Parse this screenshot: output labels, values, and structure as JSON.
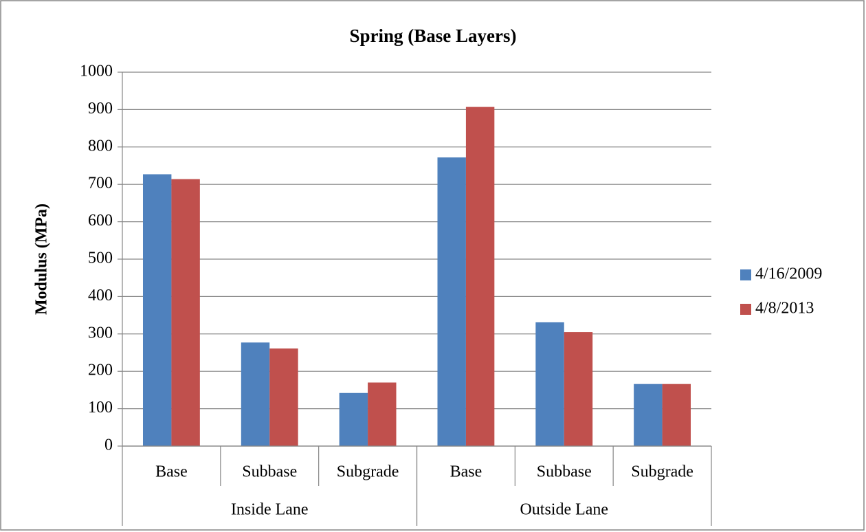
{
  "chart_data": {
    "type": "bar",
    "title": "Spring (Base Layers)",
    "y_label": "Modulus (MPa)",
    "category_groups": [
      {
        "name": "Inside Lane",
        "categories": [
          "Base",
          "Subbase",
          "Subgrade"
        ]
      },
      {
        "name": "Outside Lane",
        "categories": [
          "Base",
          "Subbase",
          "Subgrade"
        ]
      }
    ],
    "series": [
      {
        "name": "4/16/2009",
        "color": "#4f81bd",
        "values": [
          727,
          277,
          142,
          772,
          331,
          166
        ]
      },
      {
        "name": "4/8/2013",
        "color": "#c0504d",
        "values": [
          714,
          261,
          170,
          907,
          305,
          166
        ]
      }
    ],
    "ylim": [
      0,
      1000
    ],
    "yticks": [
      0,
      100,
      200,
      300,
      400,
      500,
      600,
      700,
      800,
      900,
      1000
    ],
    "grid": true,
    "legend": "right"
  }
}
